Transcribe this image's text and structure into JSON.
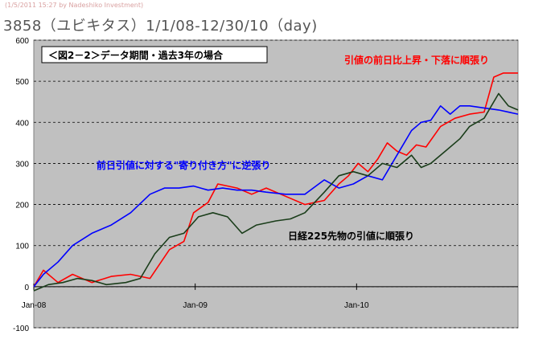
{
  "watermark": "(1/5/2011 15:27 by Nadeshiko Investment)",
  "chart_title": "3858（ユビキタス）1/1/08-12/30/10（day)",
  "chart_data": {
    "type": "line",
    "title": "3858（ユビキタス）1/1/08-12/30/10（day)",
    "box_label": "＜図2－2＞データ期間・過去3年の場合",
    "x_range": [
      "2008-01-01",
      "2010-12-30"
    ],
    "x_ticks": [
      "Jan-08",
      "Jan-09",
      "Jan-10"
    ],
    "ylim": [
      -100,
      600
    ],
    "y_ticks": [
      -100,
      0,
      100,
      200,
      300,
      400,
      500,
      600
    ],
    "grid": "horizontal dashed",
    "colors": {
      "red": "#ff0000",
      "blue": "#0000ff",
      "green": "#1a3d1a",
      "plot_bg": "#c0c0c0"
    },
    "series": [
      {
        "name": "引値の前日比上昇・下落に順張り",
        "color": "#ff0000",
        "x": [
          0,
          0.02,
          0.05,
          0.08,
          0.12,
          0.16,
          0.2,
          0.24,
          0.28,
          0.31,
          0.33,
          0.36,
          0.38,
          0.42,
          0.45,
          0.48,
          0.52,
          0.56,
          0.6,
          0.63,
          0.65,
          0.67,
          0.69,
          0.71,
          0.73,
          0.75,
          0.77,
          0.79,
          0.81,
          0.84,
          0.87,
          0.9,
          0.93,
          0.95,
          0.97,
          1.0
        ],
        "values": [
          0,
          40,
          10,
          30,
          10,
          25,
          30,
          20,
          90,
          110,
          180,
          205,
          250,
          240,
          225,
          240,
          220,
          200,
          210,
          250,
          270,
          300,
          280,
          310,
          350,
          330,
          320,
          345,
          340,
          390,
          410,
          420,
          425,
          510,
          520,
          520
        ]
      },
      {
        "name": "前日引値に対する\"寄り付き方\"に逆張り",
        "color": "#0000ff",
        "x": [
          0,
          0.02,
          0.05,
          0.08,
          0.12,
          0.16,
          0.2,
          0.24,
          0.27,
          0.3,
          0.33,
          0.36,
          0.39,
          0.42,
          0.45,
          0.48,
          0.52,
          0.56,
          0.6,
          0.63,
          0.66,
          0.69,
          0.72,
          0.75,
          0.78,
          0.8,
          0.82,
          0.84,
          0.86,
          0.88,
          0.9,
          0.93,
          0.96,
          1.0
        ],
        "values": [
          0,
          30,
          60,
          100,
          130,
          150,
          180,
          225,
          240,
          240,
          245,
          235,
          240,
          235,
          235,
          230,
          225,
          225,
          260,
          240,
          250,
          270,
          260,
          320,
          380,
          400,
          405,
          440,
          420,
          440,
          440,
          435,
          430,
          420
        ]
      },
      {
        "name": "日経225先物の引値に順張り",
        "color": "#1a3d1a",
        "x": [
          0,
          0.03,
          0.06,
          0.09,
          0.12,
          0.15,
          0.19,
          0.22,
          0.25,
          0.28,
          0.31,
          0.34,
          0.37,
          0.4,
          0.43,
          0.46,
          0.5,
          0.53,
          0.56,
          0.6,
          0.63,
          0.66,
          0.69,
          0.72,
          0.75,
          0.78,
          0.8,
          0.82,
          0.85,
          0.88,
          0.9,
          0.93,
          0.96,
          0.98,
          1.0
        ],
        "values": [
          -10,
          5,
          10,
          20,
          15,
          5,
          10,
          20,
          80,
          120,
          130,
          170,
          180,
          170,
          130,
          150,
          160,
          165,
          180,
          230,
          270,
          280,
          270,
          300,
          290,
          320,
          290,
          300,
          330,
          360,
          390,
          410,
          470,
          440,
          430
        ]
      }
    ]
  },
  "annotations": {
    "red": "引値の前日比上昇・下落に順張り",
    "blue": "前日引値に対する\"寄り付き方\"に逆張り",
    "green": "日経225先物の引値に順張り"
  }
}
